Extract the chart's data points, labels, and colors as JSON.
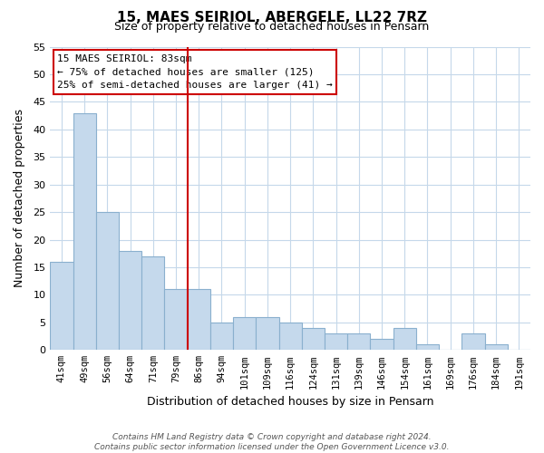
{
  "title": "15, MAES SEIRIOL, ABERGELE, LL22 7RZ",
  "subtitle": "Size of property relative to detached houses in Pensarn",
  "xlabel": "Distribution of detached houses by size in Pensarn",
  "ylabel": "Number of detached properties",
  "categories": [
    "41sqm",
    "49sqm",
    "56sqm",
    "64sqm",
    "71sqm",
    "79sqm",
    "86sqm",
    "94sqm",
    "101sqm",
    "109sqm",
    "116sqm",
    "124sqm",
    "131sqm",
    "139sqm",
    "146sqm",
    "154sqm",
    "161sqm",
    "169sqm",
    "176sqm",
    "184sqm",
    "191sqm"
  ],
  "values": [
    16,
    43,
    25,
    18,
    17,
    11,
    11,
    5,
    6,
    6,
    5,
    4,
    3,
    3,
    2,
    4,
    1,
    0,
    3,
    1,
    0
  ],
  "bar_color": "#c5d9ec",
  "bar_edge_color": "#8ab0ce",
  "vline_x": 5.5,
  "vline_color": "#cc0000",
  "annotation_text": "15 MAES SEIRIOL: 83sqm\n← 75% of detached houses are smaller (125)\n25% of semi-detached houses are larger (41) →",
  "annotation_box_color": "#ffffff",
  "annotation_box_edge": "#cc0000",
  "ylim": [
    0,
    55
  ],
  "yticks": [
    0,
    5,
    10,
    15,
    20,
    25,
    30,
    35,
    40,
    45,
    50,
    55
  ],
  "background_color": "#ffffff",
  "grid_color": "#c5d8ea",
  "footer_line1": "Contains HM Land Registry data © Crown copyright and database right 2024.",
  "footer_line2": "Contains public sector information licensed under the Open Government Licence v3.0."
}
